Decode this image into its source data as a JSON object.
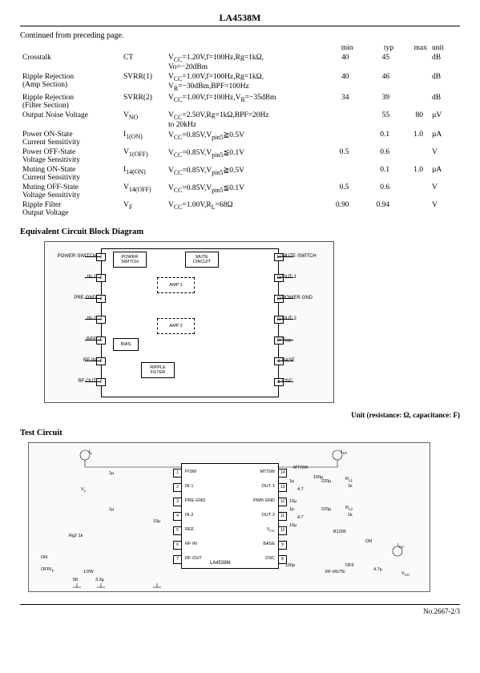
{
  "header": {
    "part_number": "LA4538M",
    "continued": "Continued from preceding page."
  },
  "params_table": {
    "headers": [
      "",
      "",
      "",
      "min",
      "typ",
      "max",
      "unit"
    ],
    "rows": [
      {
        "name": "Crosstalk",
        "sym": "CT",
        "cond": "V<sub>CC</sub>=1.20V,f=100Hz,Rg=1kΩ,<br>Vo=−20dBm",
        "min": "40",
        "typ": "45",
        "max": "",
        "unit": "dB"
      },
      {
        "name": "Ripple Rejection<br>(Amp Section)",
        "sym": "SVRR(1)",
        "cond": "V<sub>CC</sub>=1.00V,f=100Hz,Rg=1kΩ,<br>V<sub>R</sub>=−30dBm,BPF=100Hz",
        "min": "40",
        "typ": "46",
        "max": "",
        "unit": "dB"
      },
      {
        "name": "Ripple Rejection<br>(Filter Section)",
        "sym": "SVRR(2)",
        "cond": "V<sub>CC</sub>=1.00V,f=100Hz,V<sub>R</sub>=−35dBm",
        "min": "34",
        "typ": "39",
        "max": "",
        "unit": "dB"
      },
      {
        "name": "Output Noise Voltage",
        "sym": "V<sub>NO</sub>",
        "cond": "V<sub>CC</sub>=2.50V,Rg=1kΩ,BPF=20Hz<br>to 20kHz",
        "min": "",
        "typ": "55",
        "max": "80",
        "unit": "µV"
      },
      {
        "name": "Power ON-State<br>Current Sensitivity",
        "sym": "I<sub>1(ON)</sub>",
        "cond": "V<sub>CC</sub>=0.85V,V<sub>pin5</sub>≧0.5V",
        "min": "",
        "typ": "0.1",
        "max": "1.0",
        "unit": "µA"
      },
      {
        "name": "Power OFF-State<br>Voltage Sensitivity",
        "sym": "V<sub>1(OFF)</sub>",
        "cond": "V<sub>CC</sub>=0.85V,V<sub>pin5</sub>≦0.1V",
        "min": "0.5",
        "typ": "0.6",
        "max": "",
        "unit": "V"
      },
      {
        "name": "Muting ON-State<br>Current Sensitivity",
        "sym": "I<sub>14(ON)</sub>",
        "cond": "V<sub>CC</sub>=0.85V,V<sub>pin5</sub>≧0.5V",
        "min": "",
        "typ": "0.1",
        "max": "1.0",
        "unit": "µA"
      },
      {
        "name": "Muting OFF-State<br>Voltage Sensitivity",
        "sym": "V<sub>14(OFF)</sub>",
        "cond": "V<sub>CC</sub>=0.85V,V<sub>pin5</sub>≦0.1V",
        "min": "0.5",
        "typ": "0.6",
        "max": "",
        "unit": "V"
      },
      {
        "name": "Ripple Filter<br>Output Voltage",
        "sym": "V<sub>F</sub>",
        "cond": "V<sub>CC</sub>=1.00V,R<sub>L</sub>=68Ω",
        "min": "0.90",
        "typ": "0.94",
        "max": "",
        "unit": "V"
      }
    ]
  },
  "block_diagram": {
    "title": "Equivalent Circuit Block Diagram",
    "left_pins": [
      {
        "n": "1",
        "label": "POWER·SWITCH"
      },
      {
        "n": "2",
        "label": "IN·1"
      },
      {
        "n": "3",
        "label": "PRE·GND"
      },
      {
        "n": "4",
        "label": "IN·2"
      },
      {
        "n": "5",
        "label": "REF"
      },
      {
        "n": "6",
        "label": "RF·IN"
      },
      {
        "n": "7",
        "label": "RF·OUT"
      }
    ],
    "right_pins": [
      {
        "n": "14",
        "label": "MUTE·SWITCH"
      },
      {
        "n": "13",
        "label": "OUT·1"
      },
      {
        "n": "12",
        "label": "POWER·GND"
      },
      {
        "n": "11",
        "label": "OUT·2"
      },
      {
        "n": "10",
        "label": "V<sub>CC</sub>"
      },
      {
        "n": "9",
        "label": "BASE"
      },
      {
        "n": "8",
        "label": "OSC"
      }
    ],
    "blocks": {
      "power_switch": "POWER<br>SWITCH",
      "mute": "MUTE<br>CIRCUIT",
      "amp1": "AMP 1",
      "amp2": "AMP 2",
      "bias": "BIAS",
      "ripple": "RIPPLE<br>FILTER"
    }
  },
  "test_circuit": {
    "title": "Test Circuit",
    "unit_note": "Unit (resistance: Ω, capacitance: F)",
    "ic_name": "LA4538M",
    "left_pins": [
      "P/SW",
      "IN·1",
      "PRE·GND",
      "IN·2",
      "REF",
      "RF·IN",
      "RF·OUT"
    ],
    "left_nums": [
      "1",
      "2",
      "3",
      "4",
      "5",
      "6",
      "7"
    ],
    "right_pins": [
      "MT/SW",
      "OUT·1",
      "PWR·GND",
      "OUT·2",
      "V<sub>CC</sub>",
      "BASE",
      "OSC"
    ],
    "right_nums": [
      "14",
      "13",
      "12",
      "11",
      "10",
      "9",
      "8"
    ],
    "components": {
      "i1": "I<sub>1</sub>",
      "i10": "I<sub>10</sub>",
      "v1": "V<sub>1</sub>",
      "vf": "V<sub>F</sub>",
      "icc": "I<sub>CC</sub>",
      "vcc": "V<sub>CC</sub>",
      "mtsw": "MT/SW",
      "on": "ON",
      "off": "OFF",
      "rf_mute": "RF·MUTE",
      "vals": {
        "1u": "1µ",
        "10u": "10µ",
        "100u": "100µ",
        "4_7u": "4.7µ",
        "3_3u": "3.3µ",
        "1p": "1p",
        "4_7": "4.7",
        "68": "68",
        "1_2m": "1/2W",
        "100p": "100p",
        "220u": "220µ",
        "rg2_1k": "Rg2 1k",
        "rl1": "R<sub>L1</sub>",
        "rl2": "R<sub>L2</sub>",
        "1k": "1k",
        "b1295": "B1295"
      }
    }
  },
  "footer": {
    "pageno": "No.2667-2/3"
  }
}
